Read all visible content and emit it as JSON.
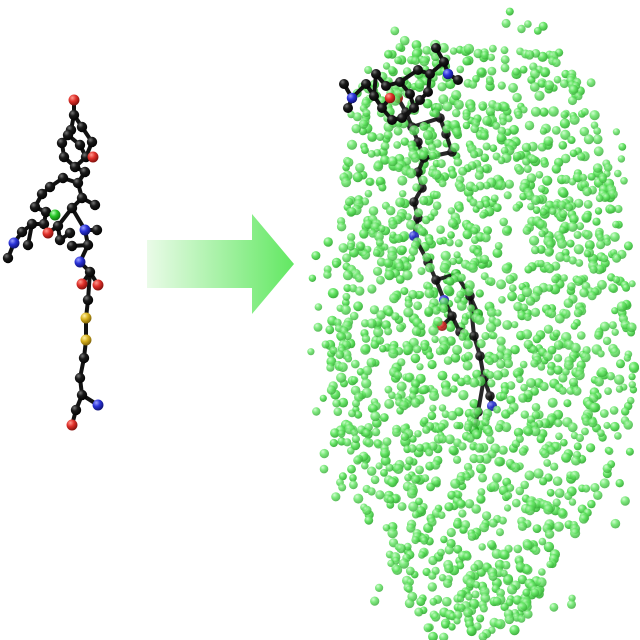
{
  "figure": {
    "panels": [
      {
        "name": "free-molecule",
        "description_visible": false
      },
      {
        "name": "solvated-molecule",
        "description_visible": false
      }
    ],
    "atom_colors": {
      "carbon": "#111111",
      "oxygen": "#e0302a",
      "nitrogen": "#2a32d8",
      "sulfur": "#d9b21e",
      "halogen": "#28c828",
      "solvent": "#5fe65f",
      "solvent_dark": "#3dbb3d",
      "solvent_highlight": "#b9f7b9"
    },
    "arrow": {
      "color_start": "#eafbe8",
      "color_end": "#62e862",
      "direction": "right"
    }
  }
}
